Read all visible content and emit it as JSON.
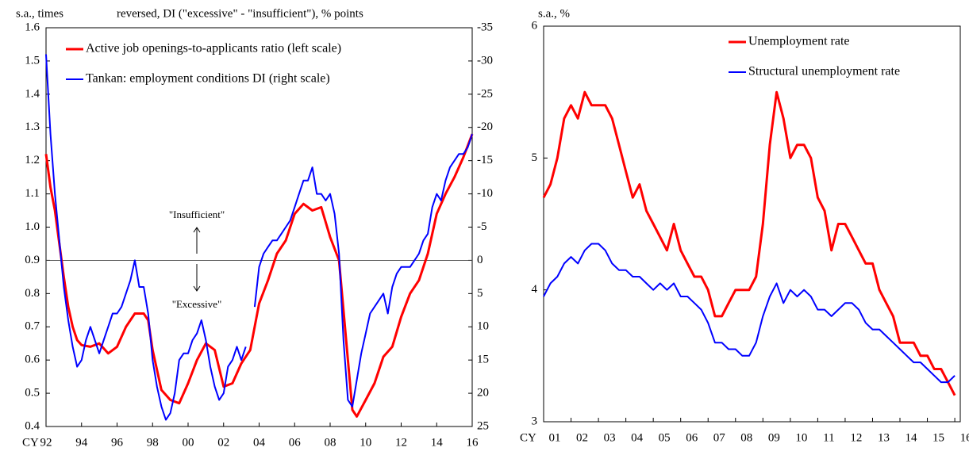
{
  "chart_data": [
    {
      "type": "line",
      "y_label": "s.a., times",
      "y2_label": "reversed, DI (\"excessive\" - \"insufficient\"), % points",
      "x_label": "CY",
      "annotations": [
        "\"Insufficient\"",
        "\"Excessive\""
      ],
      "legend": "upper left",
      "zero_line": true,
      "xlim": [
        1992,
        2016
      ],
      "xticks": [
        {
          "value": 1992,
          "label": "92"
        },
        {
          "value": 1994,
          "label": "94"
        },
        {
          "value": 1996,
          "label": "96"
        },
        {
          "value": 1998,
          "label": "98"
        },
        {
          "value": 2000,
          "label": "00"
        },
        {
          "value": 2002,
          "label": "02"
        },
        {
          "value": 2004,
          "label": "04"
        },
        {
          "value": 2006,
          "label": "06"
        },
        {
          "value": 2008,
          "label": "08"
        },
        {
          "value": 2010,
          "label": "10"
        },
        {
          "value": 2012,
          "label": "12"
        },
        {
          "value": 2014,
          "label": "14"
        },
        {
          "value": 2016,
          "label": "16"
        }
      ],
      "ylim": [
        0.4,
        1.6
      ],
      "yticks": [
        0.4,
        0.5,
        0.6,
        0.7,
        0.8,
        0.9,
        {
          "value": 1,
          "label": "1.0"
        },
        1.1,
        1.2,
        1.3,
        1.4,
        1.5,
        1.6
      ],
      "y2lim": [
        25,
        -35
      ],
      "y2ticks": [
        25,
        20,
        15,
        10,
        5,
        0,
        -5,
        -10,
        -15,
        -20,
        -25,
        -30,
        -35
      ],
      "series": [
        {
          "name": "Active job openings-to-applicants ratio (left scale)",
          "color": "#ff0000",
          "x": [
            1992,
            1992.25,
            1992.5,
            1992.75,
            1993,
            1993.25,
            1993.5,
            1993.75,
            1994,
            1994.5,
            1995,
            1995.5,
            1996,
            1996.5,
            1997,
            1997.5,
            1997.75,
            1998,
            1998.5,
            1999,
            1999.5,
            2000,
            2000.5,
            2001,
            2001.5,
            2002,
            2002.5,
            2003,
            2003.5,
            2004,
            2004.5,
            2005,
            2005.5,
            2006,
            2006.5,
            2007,
            2007.5,
            2008,
            2008.5,
            2009,
            2009.25,
            2009.5,
            2010,
            2010.5,
            2011,
            2011.5,
            2012,
            2012.5,
            2013,
            2013.5,
            2014,
            2014.5,
            2015,
            2015.5,
            2016
          ],
          "values": [
            1.22,
            1.12,
            1.05,
            0.95,
            0.85,
            0.76,
            0.7,
            0.66,
            0.645,
            0.64,
            0.65,
            0.62,
            0.64,
            0.7,
            0.74,
            0.74,
            0.72,
            0.63,
            0.51,
            0.48,
            0.47,
            0.53,
            0.6,
            0.65,
            0.63,
            0.52,
            0.53,
            0.59,
            0.63,
            0.77,
            0.84,
            0.92,
            0.96,
            1.04,
            1.07,
            1.05,
            1.06,
            0.97,
            0.9,
            0.6,
            0.45,
            0.43,
            0.48,
            0.53,
            0.61,
            0.64,
            0.73,
            0.8,
            0.84,
            0.92,
            1.04,
            1.1,
            1.15,
            1.21,
            1.28
          ]
        },
        {
          "name": "Tankan: employment conditions DI (right scale)",
          "color": "#0000ff",
          "axis": "y2",
          "x": [
            1992,
            1992.25,
            1992.5,
            1992.75,
            1993,
            1993.25,
            1993.5,
            1993.75,
            1994,
            1994.25,
            1994.5,
            1994.75,
            1995,
            1995.25,
            1995.5,
            1995.75,
            1996,
            1996.25,
            1996.5,
            1996.75,
            1997,
            1997.25,
            1997.5,
            1997.75,
            1998,
            1998.25,
            1998.5,
            1998.75,
            1999,
            1999.25,
            1999.5,
            1999.75,
            2000,
            2000.25,
            2000.5,
            2000.75,
            2001,
            2001.25,
            2001.5,
            2001.75,
            2002,
            2002.25,
            2002.5,
            2002.75,
            2003,
            2003.25,
            2003.5,
            2003.75,
            2004,
            2004.25,
            2004.5,
            2004.75,
            2005,
            2005.25,
            2005.5,
            2005.75,
            2006,
            2006.25,
            2006.5,
            2006.75,
            2007,
            2007.25,
            2007.5,
            2007.75,
            2008,
            2008.25,
            2008.5,
            2008.75,
            2009,
            2009.25,
            2009.5,
            2009.75,
            2010,
            2010.25,
            2010.5,
            2010.75,
            2011,
            2011.25,
            2011.5,
            2011.75,
            2012,
            2012.25,
            2012.5,
            2012.75,
            2013,
            2013.25,
            2013.5,
            2013.75,
            2014,
            2014.25,
            2014.5,
            2014.75,
            2015,
            2015.25,
            2015.5,
            2015.75,
            2016
          ],
          "values": [
            -31,
            -19,
            -10,
            -3,
            4,
            9,
            13,
            16,
            15,
            12,
            10,
            12,
            14,
            12,
            10,
            8,
            8,
            7,
            5,
            3,
            0,
            4,
            4,
            8,
            15,
            19,
            22,
            24,
            23,
            20,
            15,
            14,
            14,
            12,
            11,
            9,
            12,
            16,
            19,
            21,
            20,
            16,
            15,
            13,
            15,
            13,
            null,
            7,
            1,
            -1,
            -2,
            -3,
            -3,
            -4,
            -5,
            -6,
            -8,
            -10,
            -12,
            -12,
            -14,
            -10,
            -10,
            -9,
            -10,
            -7,
            -1,
            12,
            21,
            22,
            18,
            14,
            11,
            8,
            7,
            6,
            5,
            8,
            4,
            2,
            1,
            1,
            1,
            0,
            -1,
            -3,
            -4,
            -8,
            -10,
            -9,
            -12,
            -14,
            -15,
            -16,
            -16,
            -17,
            -19
          ]
        }
      ]
    },
    {
      "type": "line",
      "y_label": "s.a., %",
      "x_label": "CY",
      "legend": "upper right",
      "xlim": [
        2001,
        2016.2
      ],
      "xticks": [
        {
          "value": 2001,
          "label": "01"
        },
        {
          "value": 2002,
          "label": "02"
        },
        {
          "value": 2003,
          "label": "03"
        },
        {
          "value": 2004,
          "label": "04"
        },
        {
          "value": 2005,
          "label": "05"
        },
        {
          "value": 2006,
          "label": "06"
        },
        {
          "value": 2007,
          "label": "07"
        },
        {
          "value": 2008,
          "label": "08"
        },
        {
          "value": 2009,
          "label": "09"
        },
        {
          "value": 2010,
          "label": "10"
        },
        {
          "value": 2011,
          "label": "11"
        },
        {
          "value": 2012,
          "label": "12"
        },
        {
          "value": 2013,
          "label": "13"
        },
        {
          "value": 2014,
          "label": "14"
        },
        {
          "value": 2015,
          "label": "15"
        },
        {
          "value": 2016,
          "label": "16"
        }
      ],
      "ylim": [
        3,
        6
      ],
      "yticks": [
        3,
        4,
        5,
        6
      ],
      "series": [
        {
          "name": "Unemployment rate",
          "color": "#ff0000",
          "x": [
            2001,
            2001.25,
            2001.5,
            2001.75,
            2002,
            2002.25,
            2002.5,
            2002.75,
            2003,
            2003.25,
            2003.5,
            2003.75,
            2004,
            2004.25,
            2004.5,
            2004.75,
            2005,
            2005.25,
            2005.5,
            2005.75,
            2006,
            2006.25,
            2006.5,
            2006.75,
            2007,
            2007.25,
            2007.5,
            2007.75,
            2008,
            2008.25,
            2008.5,
            2008.75,
            2009,
            2009.25,
            2009.5,
            2009.75,
            2010,
            2010.25,
            2010.5,
            2010.75,
            2011,
            2011.25,
            2011.5,
            2011.75,
            2012,
            2012.25,
            2012.5,
            2012.75,
            2013,
            2013.25,
            2013.5,
            2013.75,
            2014,
            2014.25,
            2014.5,
            2014.75,
            2015,
            2015.25,
            2015.5,
            2015.75,
            2016
          ],
          "values": [
            4.7,
            4.8,
            5.0,
            5.3,
            5.4,
            5.3,
            5.5,
            5.4,
            5.4,
            5.4,
            5.3,
            5.1,
            4.9,
            4.7,
            4.8,
            4.6,
            4.5,
            4.4,
            4.3,
            4.5,
            4.3,
            4.2,
            4.1,
            4.1,
            4.0,
            3.8,
            3.8,
            3.9,
            4.0,
            4.0,
            4.0,
            4.1,
            4.5,
            5.1,
            5.5,
            5.3,
            5.0,
            5.1,
            5.1,
            5.0,
            4.7,
            4.6,
            4.3,
            4.5,
            4.5,
            4.4,
            4.3,
            4.2,
            4.2,
            4.0,
            3.9,
            3.8,
            3.6,
            3.6,
            3.6,
            3.5,
            3.5,
            3.4,
            3.4,
            3.3,
            3.2
          ]
        },
        {
          "name": "Structural unemployment rate",
          "color": "#0000ff",
          "x": [
            2001,
            2001.25,
            2001.5,
            2001.75,
            2002,
            2002.25,
            2002.5,
            2002.75,
            2003,
            2003.25,
            2003.5,
            2003.75,
            2004,
            2004.25,
            2004.5,
            2004.75,
            2005,
            2005.25,
            2005.5,
            2005.75,
            2006,
            2006.25,
            2006.5,
            2006.75,
            2007,
            2007.25,
            2007.5,
            2007.75,
            2008,
            2008.25,
            2008.5,
            2008.75,
            2009,
            2009.25,
            2009.5,
            2009.75,
            2010,
            2010.25,
            2010.5,
            2010.75,
            2011,
            2011.25,
            2011.5,
            2011.75,
            2012,
            2012.25,
            2012.5,
            2012.75,
            2013,
            2013.25,
            2013.5,
            2013.75,
            2014,
            2014.25,
            2014.5,
            2014.75,
            2015,
            2015.25,
            2015.5,
            2015.75,
            2016
          ],
          "values": [
            3.95,
            4.05,
            4.1,
            4.2,
            4.25,
            4.2,
            4.3,
            4.35,
            4.35,
            4.3,
            4.2,
            4.15,
            4.15,
            4.1,
            4.1,
            4.05,
            4.0,
            4.05,
            4.0,
            4.05,
            3.95,
            3.95,
            3.9,
            3.85,
            3.75,
            3.6,
            3.6,
            3.55,
            3.55,
            3.5,
            3.5,
            3.6,
            3.8,
            3.95,
            4.05,
            3.9,
            4.0,
            3.95,
            4.0,
            3.95,
            3.85,
            3.85,
            3.8,
            3.85,
            3.9,
            3.9,
            3.85,
            3.75,
            3.7,
            3.7,
            3.65,
            3.6,
            3.55,
            3.5,
            3.45,
            3.45,
            3.4,
            3.35,
            3.3,
            3.3,
            3.35
          ]
        }
      ]
    }
  ]
}
